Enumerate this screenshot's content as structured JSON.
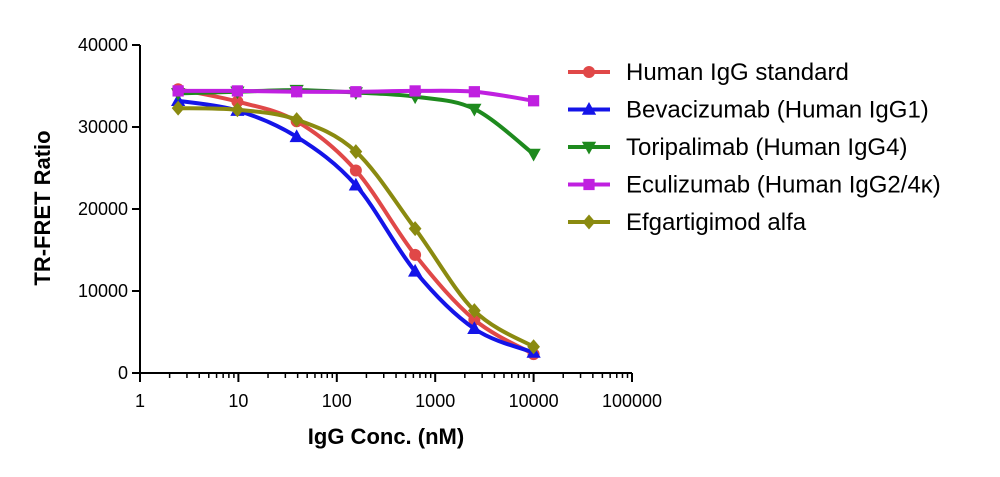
{
  "chart_data": {
    "type": "line",
    "title": "",
    "xlabel": "IgG Conc. (nM)",
    "ylabel": "TR-FRET Ratio",
    "xscale": "log",
    "xlim": [
      1,
      100000
    ],
    "ylim": [
      0,
      40000
    ],
    "x_ticks": [
      1,
      10,
      100,
      1000,
      10000,
      100000
    ],
    "x_tick_labels": [
      "1",
      "10",
      "100",
      "1000",
      "10000",
      "100000"
    ],
    "y_ticks": [
      0,
      10000,
      20000,
      30000,
      40000
    ],
    "y_tick_labels": [
      "0",
      "10000",
      "20000",
      "30000",
      "40000"
    ],
    "grid": false,
    "legend_position": "right",
    "x": [
      2.44,
      9.77,
      39.1,
      156.25,
      625,
      2500,
      10000
    ],
    "series": [
      {
        "name": "Human IgG standard",
        "color": "#e04848",
        "marker": "circle",
        "values": [
          34600,
          33100,
          30700,
          24700,
          14400,
          6500,
          2300
        ]
      },
      {
        "name": "Bevacizumab (Human IgG1)",
        "color": "#1414e8",
        "marker": "triangle-up",
        "values": [
          33200,
          32000,
          28800,
          22900,
          12400,
          5400,
          2500
        ]
      },
      {
        "name": "Toripalimab (Human IgG4)",
        "color": "#1e8a1e",
        "marker": "triangle-down",
        "values": [
          34100,
          34300,
          34500,
          34200,
          33700,
          32200,
          26700
        ]
      },
      {
        "name": "Eculizumab (Human IgG2/4κ)",
        "color": "#c020e0",
        "marker": "square",
        "values": [
          34400,
          34400,
          34300,
          34300,
          34400,
          34300,
          33200
        ]
      },
      {
        "name": "Efgartigimod alfa",
        "color": "#8a8a10",
        "marker": "diamond",
        "values": [
          32300,
          32100,
          30900,
          27000,
          17600,
          7600,
          3200
        ]
      }
    ]
  }
}
